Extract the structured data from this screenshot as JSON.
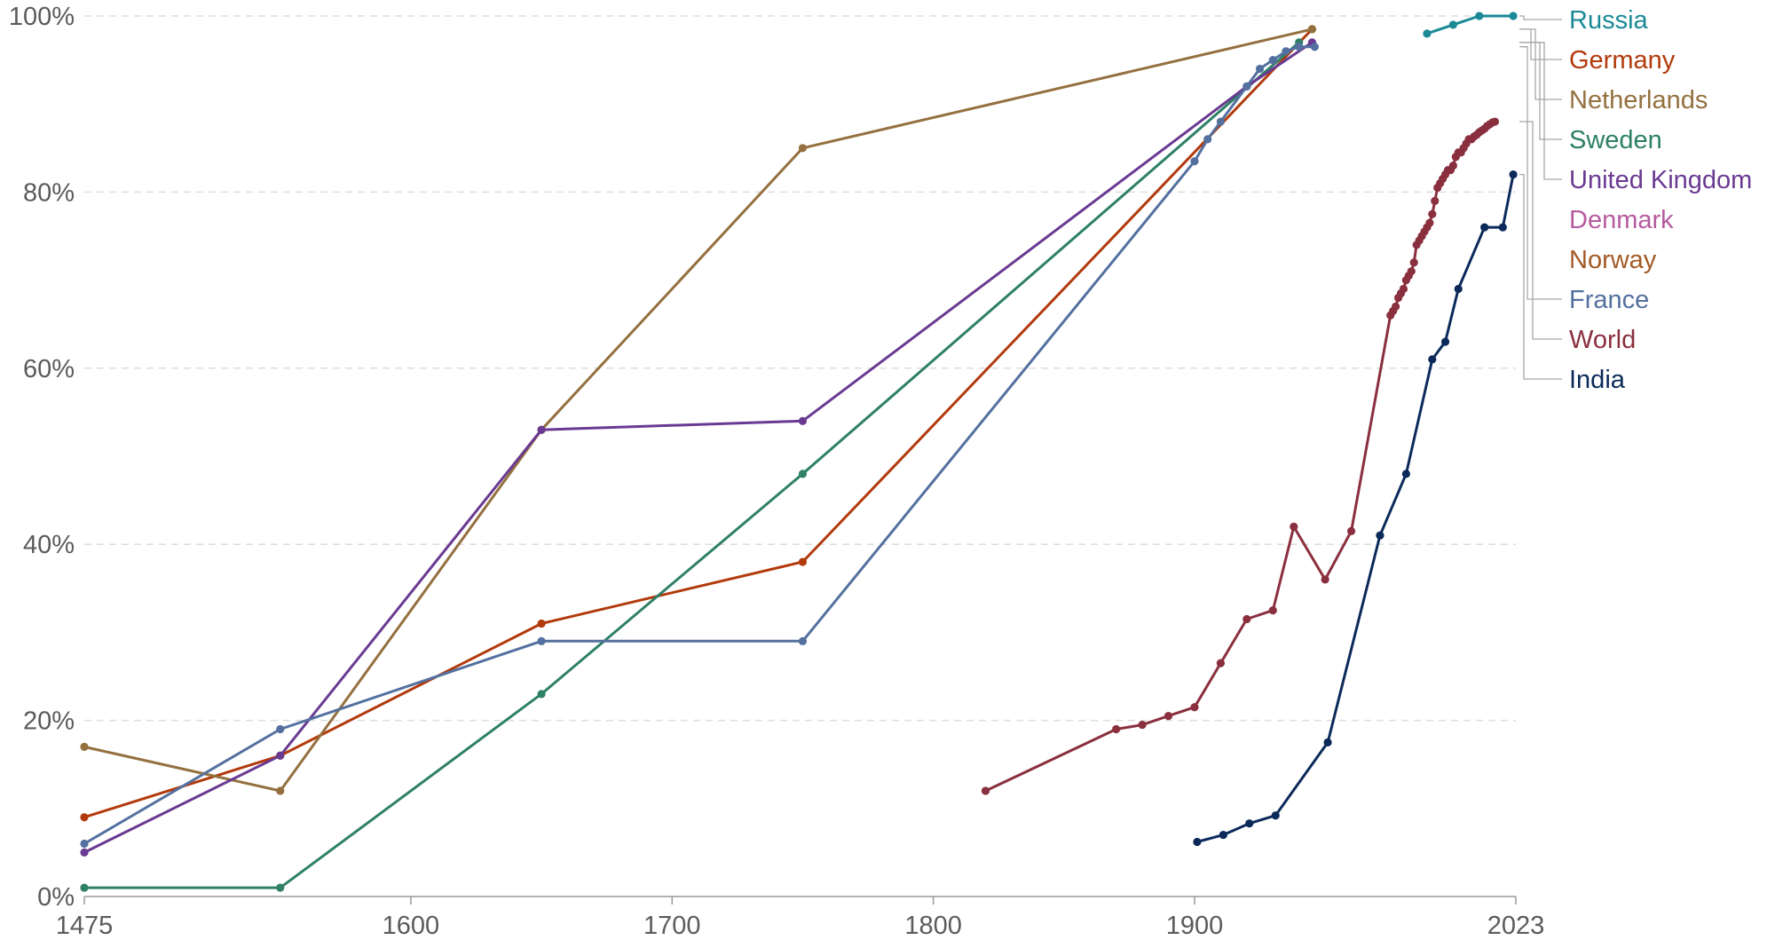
{
  "chart_data": {
    "type": "line",
    "title": "",
    "xlabel": "",
    "ylabel": "",
    "xlim": [
      1475,
      2023
    ],
    "ylim": [
      0,
      100
    ],
    "x_ticks": [
      1475,
      1600,
      1700,
      1800,
      1900,
      2023
    ],
    "y_ticks": [
      0,
      20,
      40,
      60,
      80,
      100
    ],
    "y_tick_labels": [
      "0%",
      "20%",
      "40%",
      "60%",
      "80%",
      "100%"
    ],
    "grid": "horizontal dashed",
    "legend_placement": "right",
    "series": [
      {
        "name": "Russia",
        "color": "#1b8a97",
        "points": [
          [
            1989,
            98
          ],
          [
            1999,
            99
          ],
          [
            2009,
            100
          ],
          [
            2022,
            100
          ]
        ]
      },
      {
        "name": "Germany",
        "color": "#b23a0c",
        "points": [
          [
            1475,
            9
          ],
          [
            1550,
            16
          ],
          [
            1650,
            31
          ],
          [
            1750,
            38
          ],
          [
            1945,
            98.5
          ]
        ]
      },
      {
        "name": "Netherlands",
        "color": "#94703f",
        "points": [
          [
            1475,
            17
          ],
          [
            1550,
            12
          ],
          [
            1650,
            53
          ],
          [
            1750,
            85
          ],
          [
            1945,
            98.5
          ]
        ]
      },
      {
        "name": "Sweden",
        "color": "#2e8066",
        "points": [
          [
            1475,
            1
          ],
          [
            1550,
            1
          ],
          [
            1650,
            23
          ],
          [
            1750,
            48
          ],
          [
            1940,
            97
          ]
        ]
      },
      {
        "name": "United Kingdom",
        "color": "#6a3a92",
        "points": [
          [
            1475,
            5
          ],
          [
            1550,
            16
          ],
          [
            1650,
            53
          ],
          [
            1750,
            54
          ],
          [
            1920,
            92
          ],
          [
            1945,
            97
          ]
        ]
      },
      {
        "name": "Denmark",
        "color": "#b55b9e",
        "points": []
      },
      {
        "name": "Norway",
        "color": "#a35a26",
        "points": []
      },
      {
        "name": "France",
        "color": "#53709f",
        "points": [
          [
            1475,
            6
          ],
          [
            1550,
            19
          ],
          [
            1650,
            29
          ],
          [
            1750,
            29
          ],
          [
            1900,
            83.5
          ],
          [
            1905,
            86
          ],
          [
            1910,
            88
          ],
          [
            1920,
            92
          ],
          [
            1925,
            94
          ],
          [
            1930,
            95
          ],
          [
            1935,
            96
          ],
          [
            1940,
            96.5
          ],
          [
            1946,
            96.5
          ]
        ]
      },
      {
        "name": "World",
        "color": "#8a2f3e",
        "points": [
          [
            1820,
            12
          ],
          [
            1870,
            19
          ],
          [
            1880,
            19.5
          ],
          [
            1890,
            20.5
          ],
          [
            1900,
            21.5
          ],
          [
            1910,
            26.5
          ],
          [
            1920,
            31.5
          ],
          [
            1930,
            32.5
          ],
          [
            1938,
            42
          ],
          [
            1950,
            36
          ],
          [
            1960,
            41.5
          ],
          [
            1975,
            66
          ],
          [
            1976,
            66.5
          ],
          [
            1977,
            67
          ],
          [
            1978,
            68
          ],
          [
            1979,
            68.5
          ],
          [
            1980,
            69
          ],
          [
            1981,
            70
          ],
          [
            1982,
            70.5
          ],
          [
            1983,
            71
          ],
          [
            1984,
            72
          ],
          [
            1985,
            74
          ],
          [
            1986,
            74.5
          ],
          [
            1987,
            75
          ],
          [
            1988,
            75.5
          ],
          [
            1989,
            76
          ],
          [
            1990,
            76.5
          ],
          [
            1991,
            77.5
          ],
          [
            1992,
            79
          ],
          [
            1993,
            80.5
          ],
          [
            1994,
            81
          ],
          [
            1995,
            81.5
          ],
          [
            1996,
            82
          ],
          [
            1997,
            82.5
          ],
          [
            1998,
            82.5
          ],
          [
            1999,
            83
          ],
          [
            2000,
            84
          ],
          [
            2001,
            84.5
          ],
          [
            2002,
            84.5
          ],
          [
            2003,
            85
          ],
          [
            2004,
            85.5
          ],
          [
            2005,
            86
          ],
          [
            2006,
            86
          ],
          [
            2007,
            86.3
          ],
          [
            2008,
            86.5
          ],
          [
            2009,
            86.8
          ],
          [
            2010,
            87
          ],
          [
            2011,
            87.2
          ],
          [
            2012,
            87.5
          ],
          [
            2013,
            87.7
          ],
          [
            2014,
            87.9
          ],
          [
            2015,
            88
          ]
        ]
      },
      {
        "name": "India",
        "color": "#0b2a5a",
        "points": [
          [
            1901,
            6.2
          ],
          [
            1911,
            7
          ],
          [
            1921,
            8.3
          ],
          [
            1931,
            9.2
          ],
          [
            1951,
            17.5
          ],
          [
            1971,
            41
          ],
          [
            1981,
            48
          ],
          [
            1991,
            61
          ],
          [
            1996,
            63
          ],
          [
            2001,
            69
          ],
          [
            2011,
            76
          ],
          [
            2018,
            76
          ],
          [
            2022,
            82
          ]
        ]
      }
    ]
  }
}
